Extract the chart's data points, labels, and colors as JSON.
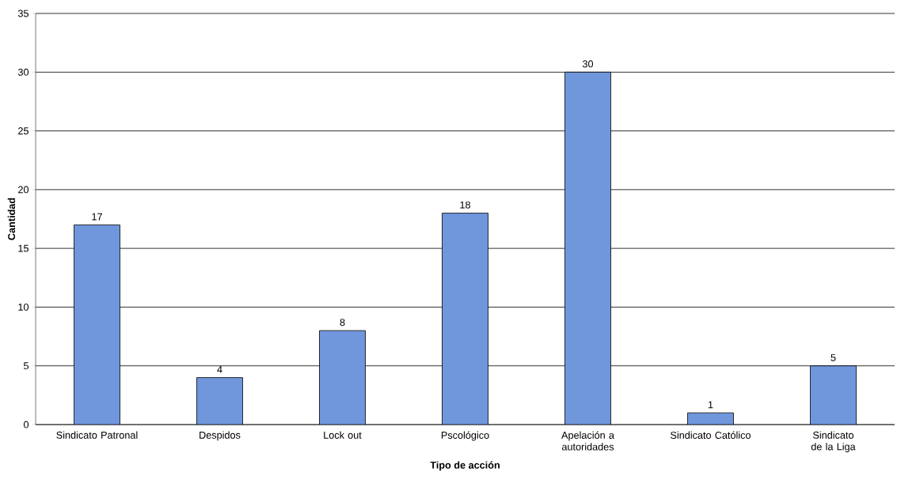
{
  "chart_data": {
    "type": "bar",
    "xlabel": "Tipo de acción",
    "ylabel": "Cantidad",
    "categories": [
      "Sindicato Patronal",
      "Despidos",
      "Lock out",
      "Pscológico",
      "Apelación a autoridades",
      "Sindicato Católico",
      "Sindicato de la Liga"
    ],
    "values": [
      17,
      4,
      8,
      18,
      30,
      1,
      5
    ],
    "color": "#7096dc",
    "ylim": [
      0,
      35
    ],
    "yticks": [
      0,
      5,
      10,
      15,
      20,
      25,
      30,
      35
    ],
    "grid": "y",
    "data_labels": true
  }
}
